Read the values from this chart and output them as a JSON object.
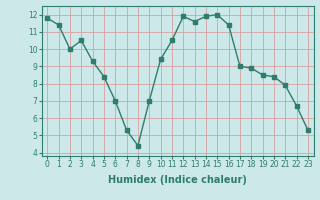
{
  "x": [
    0,
    1,
    2,
    3,
    4,
    5,
    6,
    7,
    8,
    9,
    10,
    11,
    12,
    13,
    14,
    15,
    16,
    17,
    18,
    19,
    20,
    21,
    22,
    23
  ],
  "y": [
    11.8,
    11.4,
    10.0,
    10.5,
    9.3,
    8.4,
    7.0,
    5.3,
    4.4,
    7.0,
    9.4,
    10.5,
    11.9,
    11.6,
    11.9,
    12.0,
    11.4,
    9.0,
    8.9,
    8.5,
    8.4,
    7.9,
    6.7,
    5.3
  ],
  "line_color": "#2e7d6e",
  "marker": "s",
  "markersize": 2.2,
  "linewidth": 1.0,
  "xlabel": "Humidex (Indice chaleur)",
  "xlabel_fontsize": 7,
  "bg_color": "#cce8e8",
  "grid_color": "#d9a0a0",
  "tick_color": "#2e7d6e",
  "xlim": [
    -0.5,
    23.5
  ],
  "ylim": [
    3.8,
    12.5
  ],
  "yticks": [
    4,
    5,
    6,
    7,
    8,
    9,
    10,
    11,
    12
  ],
  "xticks": [
    0,
    1,
    2,
    3,
    4,
    5,
    6,
    7,
    8,
    9,
    10,
    11,
    12,
    13,
    14,
    15,
    16,
    17,
    18,
    19,
    20,
    21,
    22,
    23
  ],
  "tick_fontsize": 5.5
}
